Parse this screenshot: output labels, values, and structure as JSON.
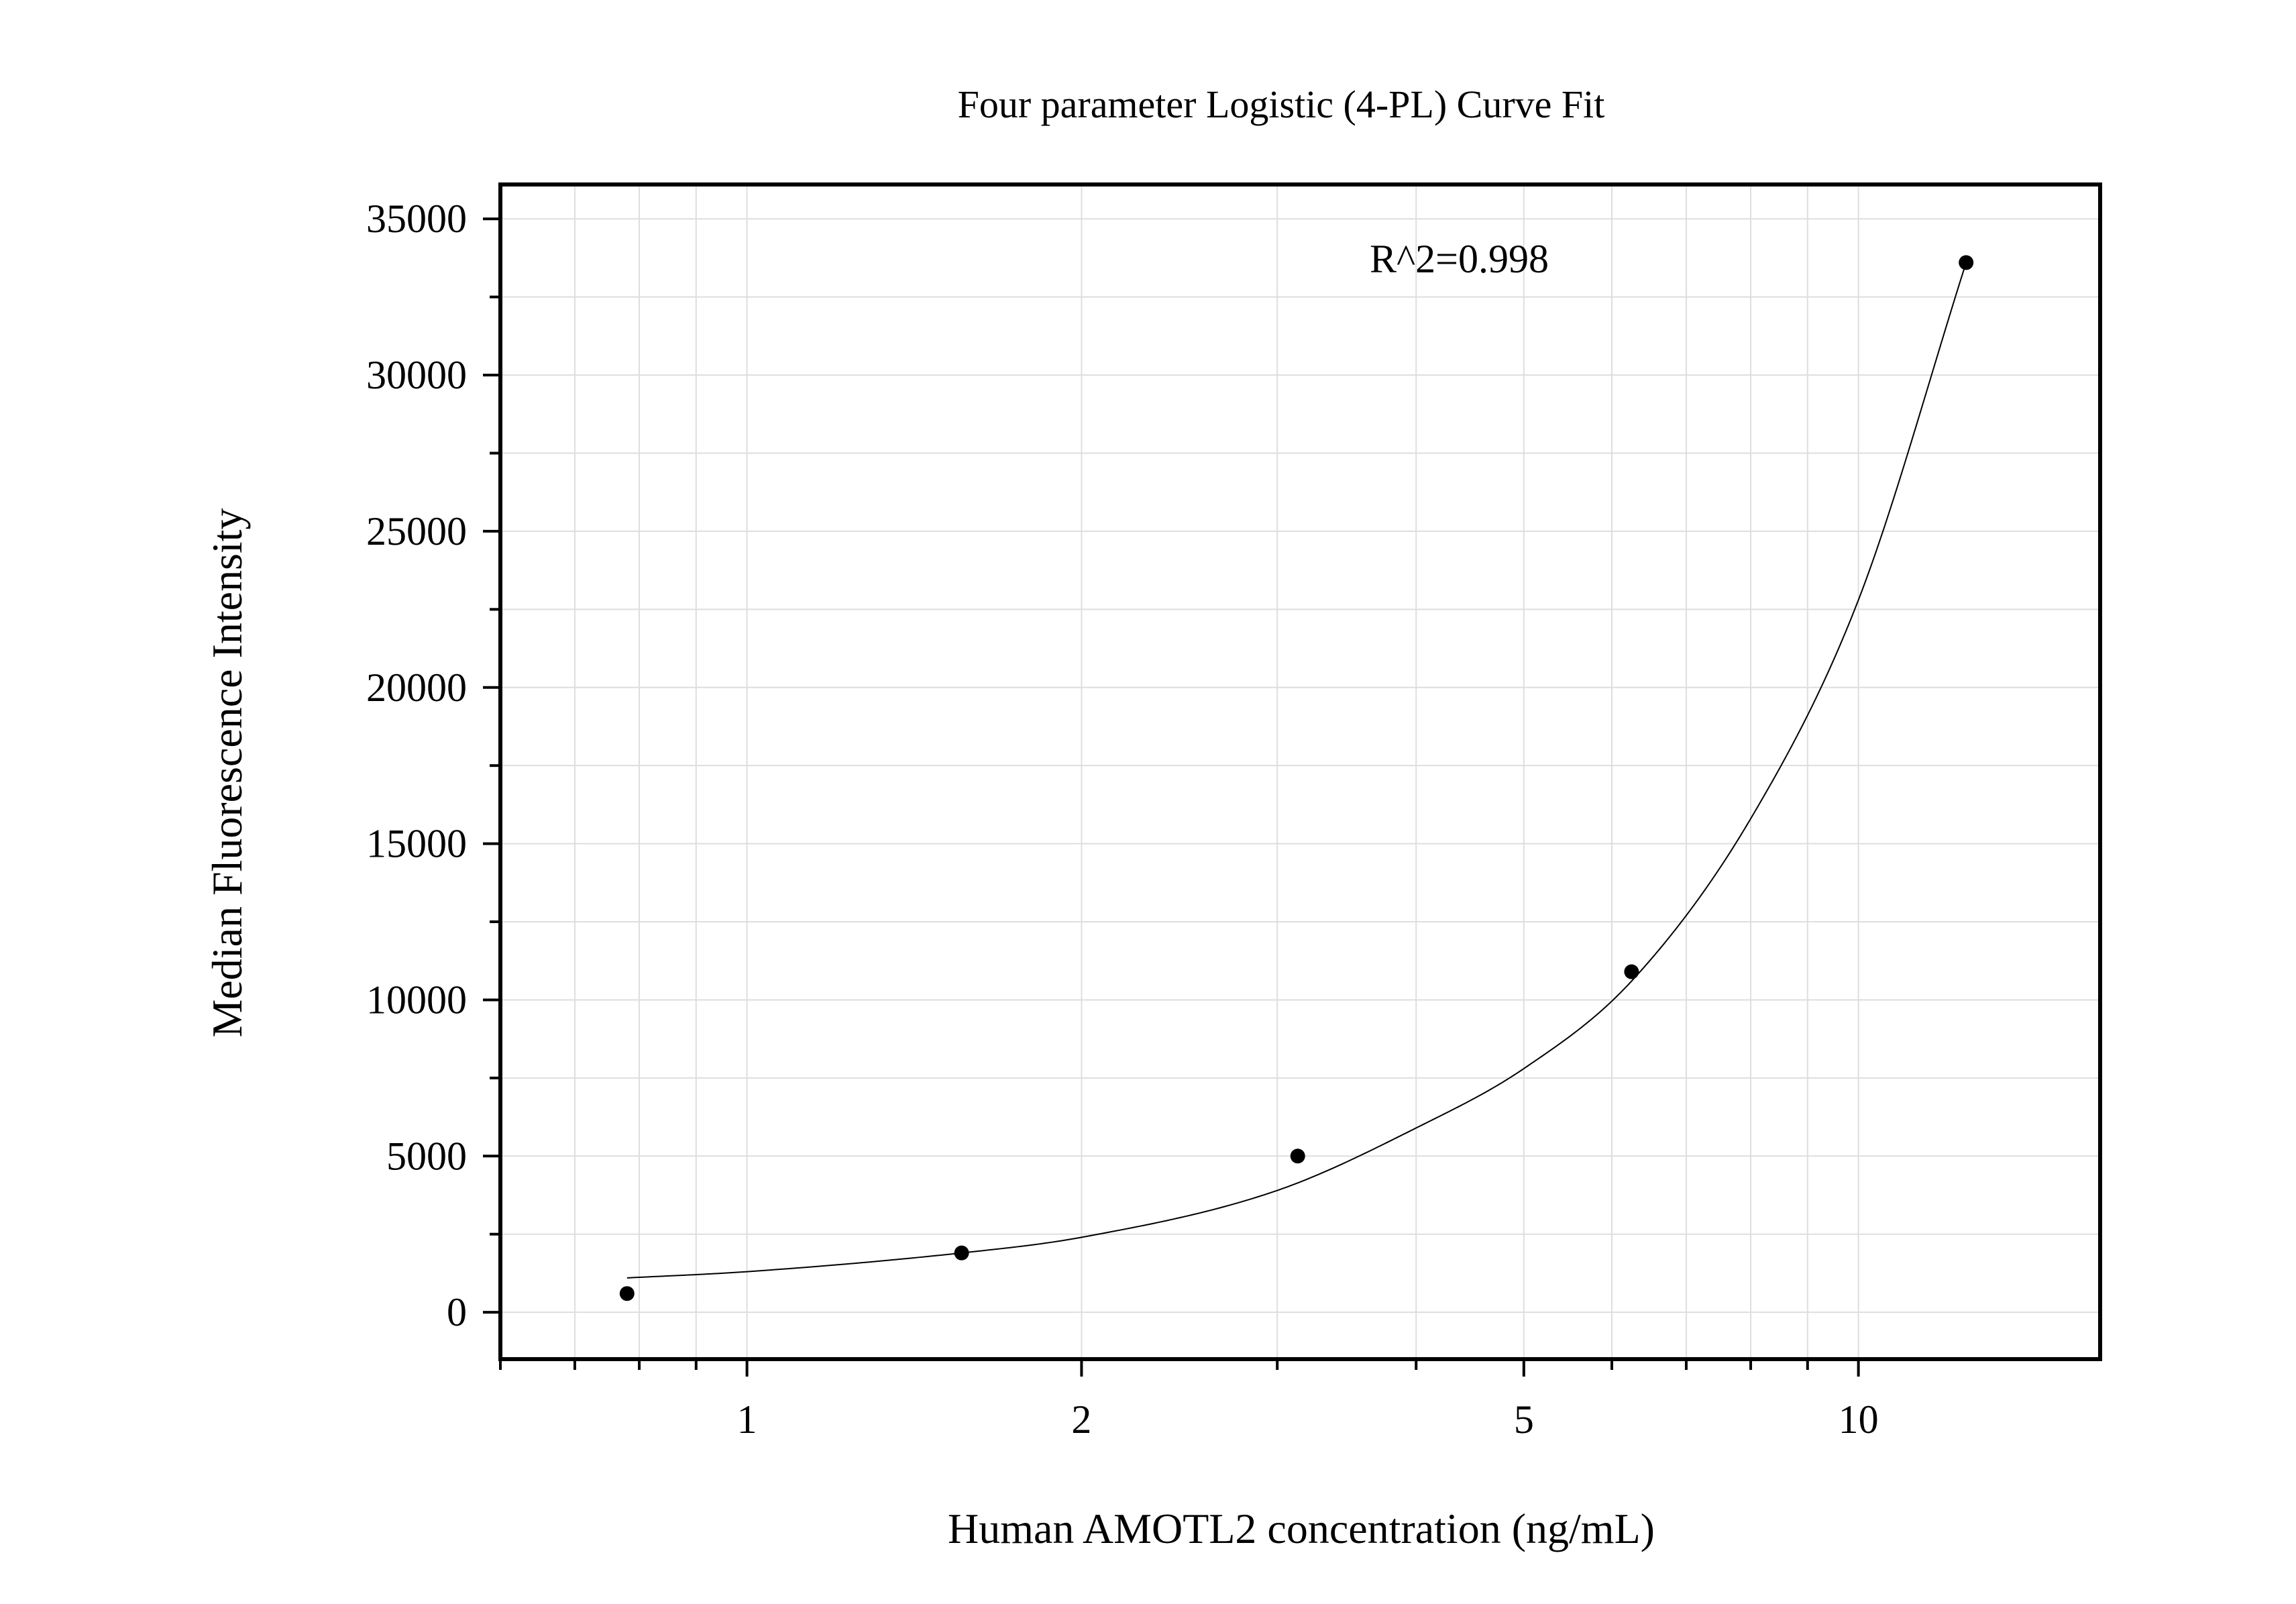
{
  "chart_data": {
    "type": "scatter",
    "title": "Four parameter Logistic (4-PL) Curve Fit",
    "xlabel": "Human AMOTL2 concentration (ng/mL)",
    "ylabel": "Median Fluorescence Intensity",
    "x_scale": "log",
    "xlim": [
      0.6,
      16.5
    ],
    "ylim": [
      -1500,
      36100
    ],
    "x_ticks": [
      1,
      2,
      5,
      10
    ],
    "x_tick_labels": [
      "1",
      "2",
      "5",
      "10"
    ],
    "y_ticks": [
      0,
      5000,
      10000,
      15000,
      20000,
      25000,
      30000,
      35000
    ],
    "y_tick_labels": [
      "0",
      "5000",
      "10000",
      "15000",
      "20000",
      "25000",
      "30000",
      "35000"
    ],
    "grid": true,
    "annotation": "R^2=0.998",
    "series": [
      {
        "x": [
          0.78,
          1.56,
          3.13,
          6.25,
          12.5
        ],
        "y": [
          600,
          1900,
          5000,
          10900,
          33600
        ]
      }
    ],
    "fit_curve": {
      "type": "4-PL",
      "points": [
        {
          "x": 0.78,
          "y": 1100
        },
        {
          "x": 1.0,
          "y": 1300
        },
        {
          "x": 1.56,
          "y": 1900
        },
        {
          "x": 2.0,
          "y": 2400
        },
        {
          "x": 3.0,
          "y": 3900
        },
        {
          "x": 4.0,
          "y": 5900
        },
        {
          "x": 5.0,
          "y": 7800
        },
        {
          "x": 6.25,
          "y": 10600
        },
        {
          "x": 8.0,
          "y": 15800
        },
        {
          "x": 10.0,
          "y": 22800
        },
        {
          "x": 12.5,
          "y": 33600
        }
      ]
    }
  }
}
